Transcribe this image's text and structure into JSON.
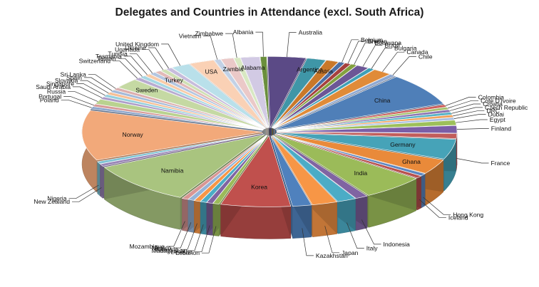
{
  "chart_data": {
    "type": "pie",
    "style": "3d-exploded",
    "title": "Delegates and Countries in Attendance (excl. South Africa)",
    "slices": [
      {
        "label": "Albania",
        "value": 1,
        "color": "#6a8f3c",
        "label_inside": false
      },
      {
        "label": "Australia",
        "value": 6,
        "color": "#5b4a86",
        "label_inside": false
      },
      {
        "label": "Argentina",
        "value": 3,
        "color": "#3f96a7",
        "label_inside": true
      },
      {
        "label": "Austria",
        "value": 2,
        "color": "#c9782a",
        "label_inside": true
      },
      {
        "label": "Belgium",
        "value": 1,
        "color": "#4c6fa5",
        "label_inside": false
      },
      {
        "label": "Bhutan",
        "value": 1,
        "color": "#a6403e",
        "label_inside": false
      },
      {
        "label": "Botswana",
        "value": 1,
        "color": "#83a13f",
        "label_inside": false
      },
      {
        "label": "Brazil",
        "value": 2,
        "color": "#6c5696",
        "label_inside": false
      },
      {
        "label": "Bulgaria",
        "value": 1,
        "color": "#3fa0b6",
        "label_inside": false
      },
      {
        "label": "Canada",
        "value": 3,
        "color": "#e08b38",
        "label_inside": false
      },
      {
        "label": "Chile",
        "value": 1,
        "color": "#8fa9d2",
        "label_inside": false
      },
      {
        "label": "China",
        "value": 13,
        "color": "#4f7fb8",
        "label_inside": true
      },
      {
        "label": "Colombia",
        "value": 1,
        "color": "#cc5e5a",
        "label_inside": false
      },
      {
        "label": "Cote D'Ivoire",
        "value": 1,
        "color": "#a5c26d",
        "label_inside": false
      },
      {
        "label": "Croatia",
        "value": 1,
        "color": "#8b74b2",
        "label_inside": false
      },
      {
        "label": "Czech Republic",
        "value": 1,
        "color": "#57b3c6",
        "label_inside": false
      },
      {
        "label": "DRC",
        "value": 1,
        "color": "#f0a25c",
        "label_inside": false
      },
      {
        "label": "Dubai",
        "value": 1,
        "color": "#a9bfe0",
        "label_inside": false
      },
      {
        "label": "Egypt",
        "value": 2,
        "color": "#9dc05a",
        "label_inside": false
      },
      {
        "label": "Finland",
        "value": 3,
        "color": "#7b5ea7",
        "label_inside": false
      },
      {
        "label": "France",
        "value": 2,
        "color": "#c25d5b",
        "label_inside": false
      },
      {
        "label": "Germany",
        "value": 8,
        "color": "#46a3b8",
        "label_inside": true
      },
      {
        "label": "Ghana",
        "value": 6,
        "color": "#e98a3a",
        "label_inside": true
      },
      {
        "label": "Hong Kong",
        "value": 1,
        "color": "#5c86c0",
        "label_inside": false
      },
      {
        "label": "Iceland",
        "value": 1,
        "color": "#b84f4c",
        "label_inside": false
      },
      {
        "label": "India",
        "value": 10,
        "color": "#9bbb59",
        "label_inside": true
      },
      {
        "label": "Indonesia",
        "value": 2,
        "color": "#8064a2",
        "label_inside": false
      },
      {
        "label": "Italy",
        "value": 3,
        "color": "#4bacc6",
        "label_inside": false
      },
      {
        "label": "Japan",
        "value": 4,
        "color": "#f79646",
        "label_inside": false
      },
      {
        "label": "Kazakhstan",
        "value": 3,
        "color": "#4f81bd",
        "label_inside": false
      },
      {
        "label": "Korea",
        "value": 11,
        "color": "#c0504d",
        "label_inside": true
      },
      {
        "label": "Lebanon",
        "value": 1,
        "color": "#9bbb59",
        "label_inside": false
      },
      {
        "label": "Lesotho",
        "value": 1,
        "color": "#8064a2",
        "label_inside": false
      },
      {
        "label": "Madagascar",
        "value": 1,
        "color": "#4bacc6",
        "label_inside": false
      },
      {
        "label": "Malaysia",
        "value": 1,
        "color": "#f79646",
        "label_inside": false
      },
      {
        "label": "Mexico",
        "value": 1,
        "color": "#95b3d7",
        "label_inside": false
      },
      {
        "label": "Mozambique",
        "value": 1,
        "color": "#d99694",
        "label_inside": false
      },
      {
        "label": "Namibia",
        "value": 17,
        "color": "#a9c47f",
        "label_inside": true
      },
      {
        "label": "New Zealand",
        "value": 1,
        "color": "#9a86b8",
        "label_inside": false
      },
      {
        "label": "Nigeria",
        "value": 1,
        "color": "#7fc3d4",
        "label_inside": false
      },
      {
        "label": "Norway",
        "value": 20,
        "color": "#f2a97a",
        "label_inside": true
      },
      {
        "label": "Poland",
        "value": 1,
        "color": "#8ea7cc",
        "label_inside": false
      },
      {
        "label": "Portugal",
        "value": 1,
        "color": "#d79a98",
        "label_inside": false
      },
      {
        "label": "Russia",
        "value": 2,
        "color": "#b9d28f",
        "label_inside": false
      },
      {
        "label": "Saudi Arabia",
        "value": 1,
        "color": "#ad9cc8",
        "label_inside": false
      },
      {
        "label": "Singapore",
        "value": 1,
        "color": "#94cfdd",
        "label_inside": false
      },
      {
        "label": "Slovakia",
        "value": 1,
        "color": "#f6bf95",
        "label_inside": false
      },
      {
        "label": "Spain",
        "value": 1,
        "color": "#a4bad9",
        "label_inside": false
      },
      {
        "label": "Sri Lanka",
        "value": 1,
        "color": "#dcaead",
        "label_inside": false
      },
      {
        "label": "Sweden",
        "value": 4,
        "color": "#c5d9a3",
        "label_inside": true
      },
      {
        "label": "Switzerland",
        "value": 1,
        "color": "#b8aad0",
        "label_inside": false
      },
      {
        "label": "Taiwan",
        "value": 1,
        "color": "#a6d7e4",
        "label_inside": false
      },
      {
        "label": "Tasmania",
        "value": 1,
        "color": "#f9cba8",
        "label_inside": false
      },
      {
        "label": "Tunisia",
        "value": 1,
        "color": "#b4c6e0",
        "label_inside": false
      },
      {
        "label": "Turkey",
        "value": 1,
        "color": "#e2b9b8",
        "label_inside": true
      },
      {
        "label": "Uganada",
        "value": 1,
        "color": "#cfe0b4",
        "label_inside": false
      },
      {
        "label": "Ukraine",
        "value": 1,
        "color": "#c7bcdc",
        "label_inside": false
      },
      {
        "label": "United Kingdom",
        "value": 3,
        "color": "#b9e0ea",
        "label_inside": false
      },
      {
        "label": "USA",
        "value": 4,
        "color": "#fad1b5",
        "label_inside": true
      },
      {
        "label": "Vietnam",
        "value": 1,
        "color": "#c2d1e6",
        "label_inside": false
      },
      {
        "label": "Zambia",
        "value": 2,
        "color": "#ebc9c8",
        "label_inside": true
      },
      {
        "label": "Zimbabwe",
        "value": 1,
        "color": "#d8e8c2",
        "label_inside": false
      },
      {
        "label": "Alabama",
        "value": 3,
        "color": "#d2cae4",
        "label_inside": true
      }
    ]
  }
}
